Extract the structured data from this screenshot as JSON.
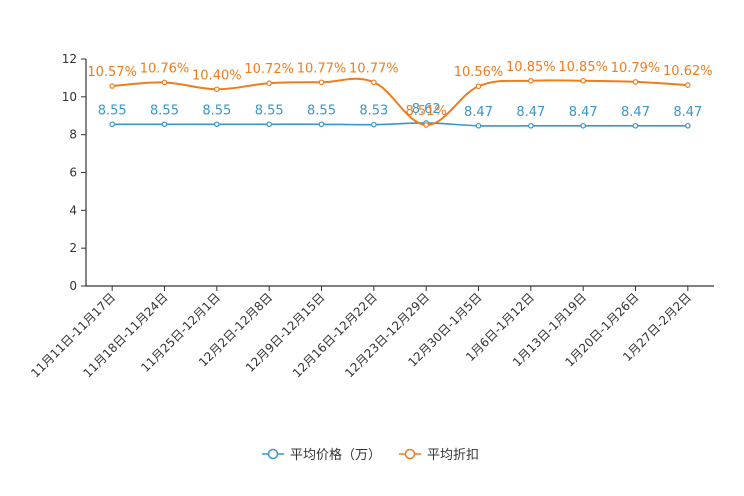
{
  "chart_data": {
    "type": "line",
    "categories": [
      "11月11日-11月17日",
      "11月18日-11月24日",
      "11月25日-12月1日",
      "12月2日-12月8日",
      "12月9日-12月15日",
      "12月16日-12月22日",
      "12月23日-12月29日",
      "12月30日-1月5日",
      "1月6日-1月12日",
      "1月13日-1月19日",
      "1月20日-1月26日",
      "1月27日-2月2日"
    ],
    "ylim": [
      0,
      12
    ],
    "yticks": [
      0,
      2,
      4,
      6,
      8,
      10,
      12
    ],
    "series": [
      {
        "name": "平均价格（万）",
        "color": "#3a96c8",
        "values": [
          8.55,
          8.55,
          8.55,
          8.55,
          8.55,
          8.53,
          8.62,
          8.47,
          8.47,
          8.47,
          8.47,
          8.47
        ],
        "labels": [
          "8.55",
          "8.55",
          "8.55",
          "8.55",
          "8.55",
          "8.53",
          "8.62",
          "8.47",
          "8.47",
          "8.47",
          "8.47",
          "8.47"
        ]
      },
      {
        "name": "平均折扣",
        "color": "#f07c1c",
        "values": [
          10.57,
          10.76,
          10.4,
          10.72,
          10.77,
          10.77,
          8.51,
          10.56,
          10.85,
          10.85,
          10.79,
          10.62
        ],
        "labels": [
          "10.57%",
          "10.76%",
          "10.40%",
          "10.72%",
          "10.77%",
          "10.77%",
          "8.51%",
          "10.56%",
          "10.85%",
          "10.85%",
          "10.79%",
          "10.62%"
        ]
      }
    ],
    "legend_position": "bottom"
  }
}
